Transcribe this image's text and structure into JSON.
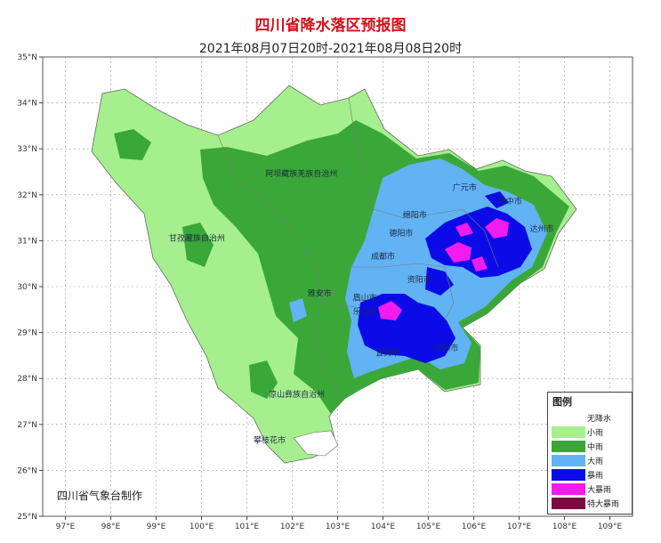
{
  "title": "四川省降水落区预报图",
  "subtitle": "2021年08月07日20时-2021年08月08日20时",
  "credit": "四川省气象台制作",
  "axes": {
    "lat_labels": [
      "35°N",
      "34°N",
      "33°N",
      "32°N",
      "31°N",
      "30°N",
      "29°N",
      "28°N",
      "27°N",
      "26°N",
      "25°N"
    ],
    "lon_labels": [
      "97°E",
      "98°E",
      "99°E",
      "100°E",
      "101°E",
      "102°E",
      "103°E",
      "104°E",
      "105°E",
      "106°E",
      "107°E",
      "108°E",
      "109°E"
    ]
  },
  "cities": [
    {
      "name": "阿坝藏族羌族自治州",
      "lon": 102.2,
      "lat": 32.4
    },
    {
      "name": "广元市",
      "lon": 105.8,
      "lat": 32.1
    },
    {
      "name": "巴中市",
      "lon": 106.8,
      "lat": 31.8
    },
    {
      "name": "绵阳市",
      "lon": 104.7,
      "lat": 31.5
    },
    {
      "name": "甘孜藏族自治州",
      "lon": 99.9,
      "lat": 31.0
    },
    {
      "name": "德阳市",
      "lon": 104.4,
      "lat": 31.1
    },
    {
      "name": "达州市",
      "lon": 107.5,
      "lat": 31.2
    },
    {
      "name": "成都市",
      "lon": 104.0,
      "lat": 30.6
    },
    {
      "name": "雅安市",
      "lon": 102.6,
      "lat": 29.8
    },
    {
      "name": "眉山市",
      "lon": 103.6,
      "lat": 29.7
    },
    {
      "name": "资阳市",
      "lon": 104.8,
      "lat": 30.1
    },
    {
      "name": "乐山市",
      "lon": 103.6,
      "lat": 29.4
    },
    {
      "name": "宜宾市",
      "lon": 104.1,
      "lat": 28.5
    },
    {
      "name": "泸州市",
      "lon": 105.4,
      "lat": 28.6
    },
    {
      "name": "凉山彝族自治州",
      "lon": 102.1,
      "lat": 27.6
    },
    {
      "name": "攀枝花市",
      "lon": 101.5,
      "lat": 26.6
    }
  ],
  "legend": {
    "title": "图例",
    "items": [
      {
        "label": "无降水",
        "color": "#ffffff"
      },
      {
        "label": "小雨",
        "color": "#a6ef8f"
      },
      {
        "label": "中雨",
        "color": "#3aa838"
      },
      {
        "label": "大雨",
        "color": "#62b3f4"
      },
      {
        "label": "暴雨",
        "color": "#0b0be8"
      },
      {
        "label": "大暴雨",
        "color": "#f21cee"
      },
      {
        "label": "特大暴雨",
        "color": "#7a0b3e"
      }
    ]
  }
}
